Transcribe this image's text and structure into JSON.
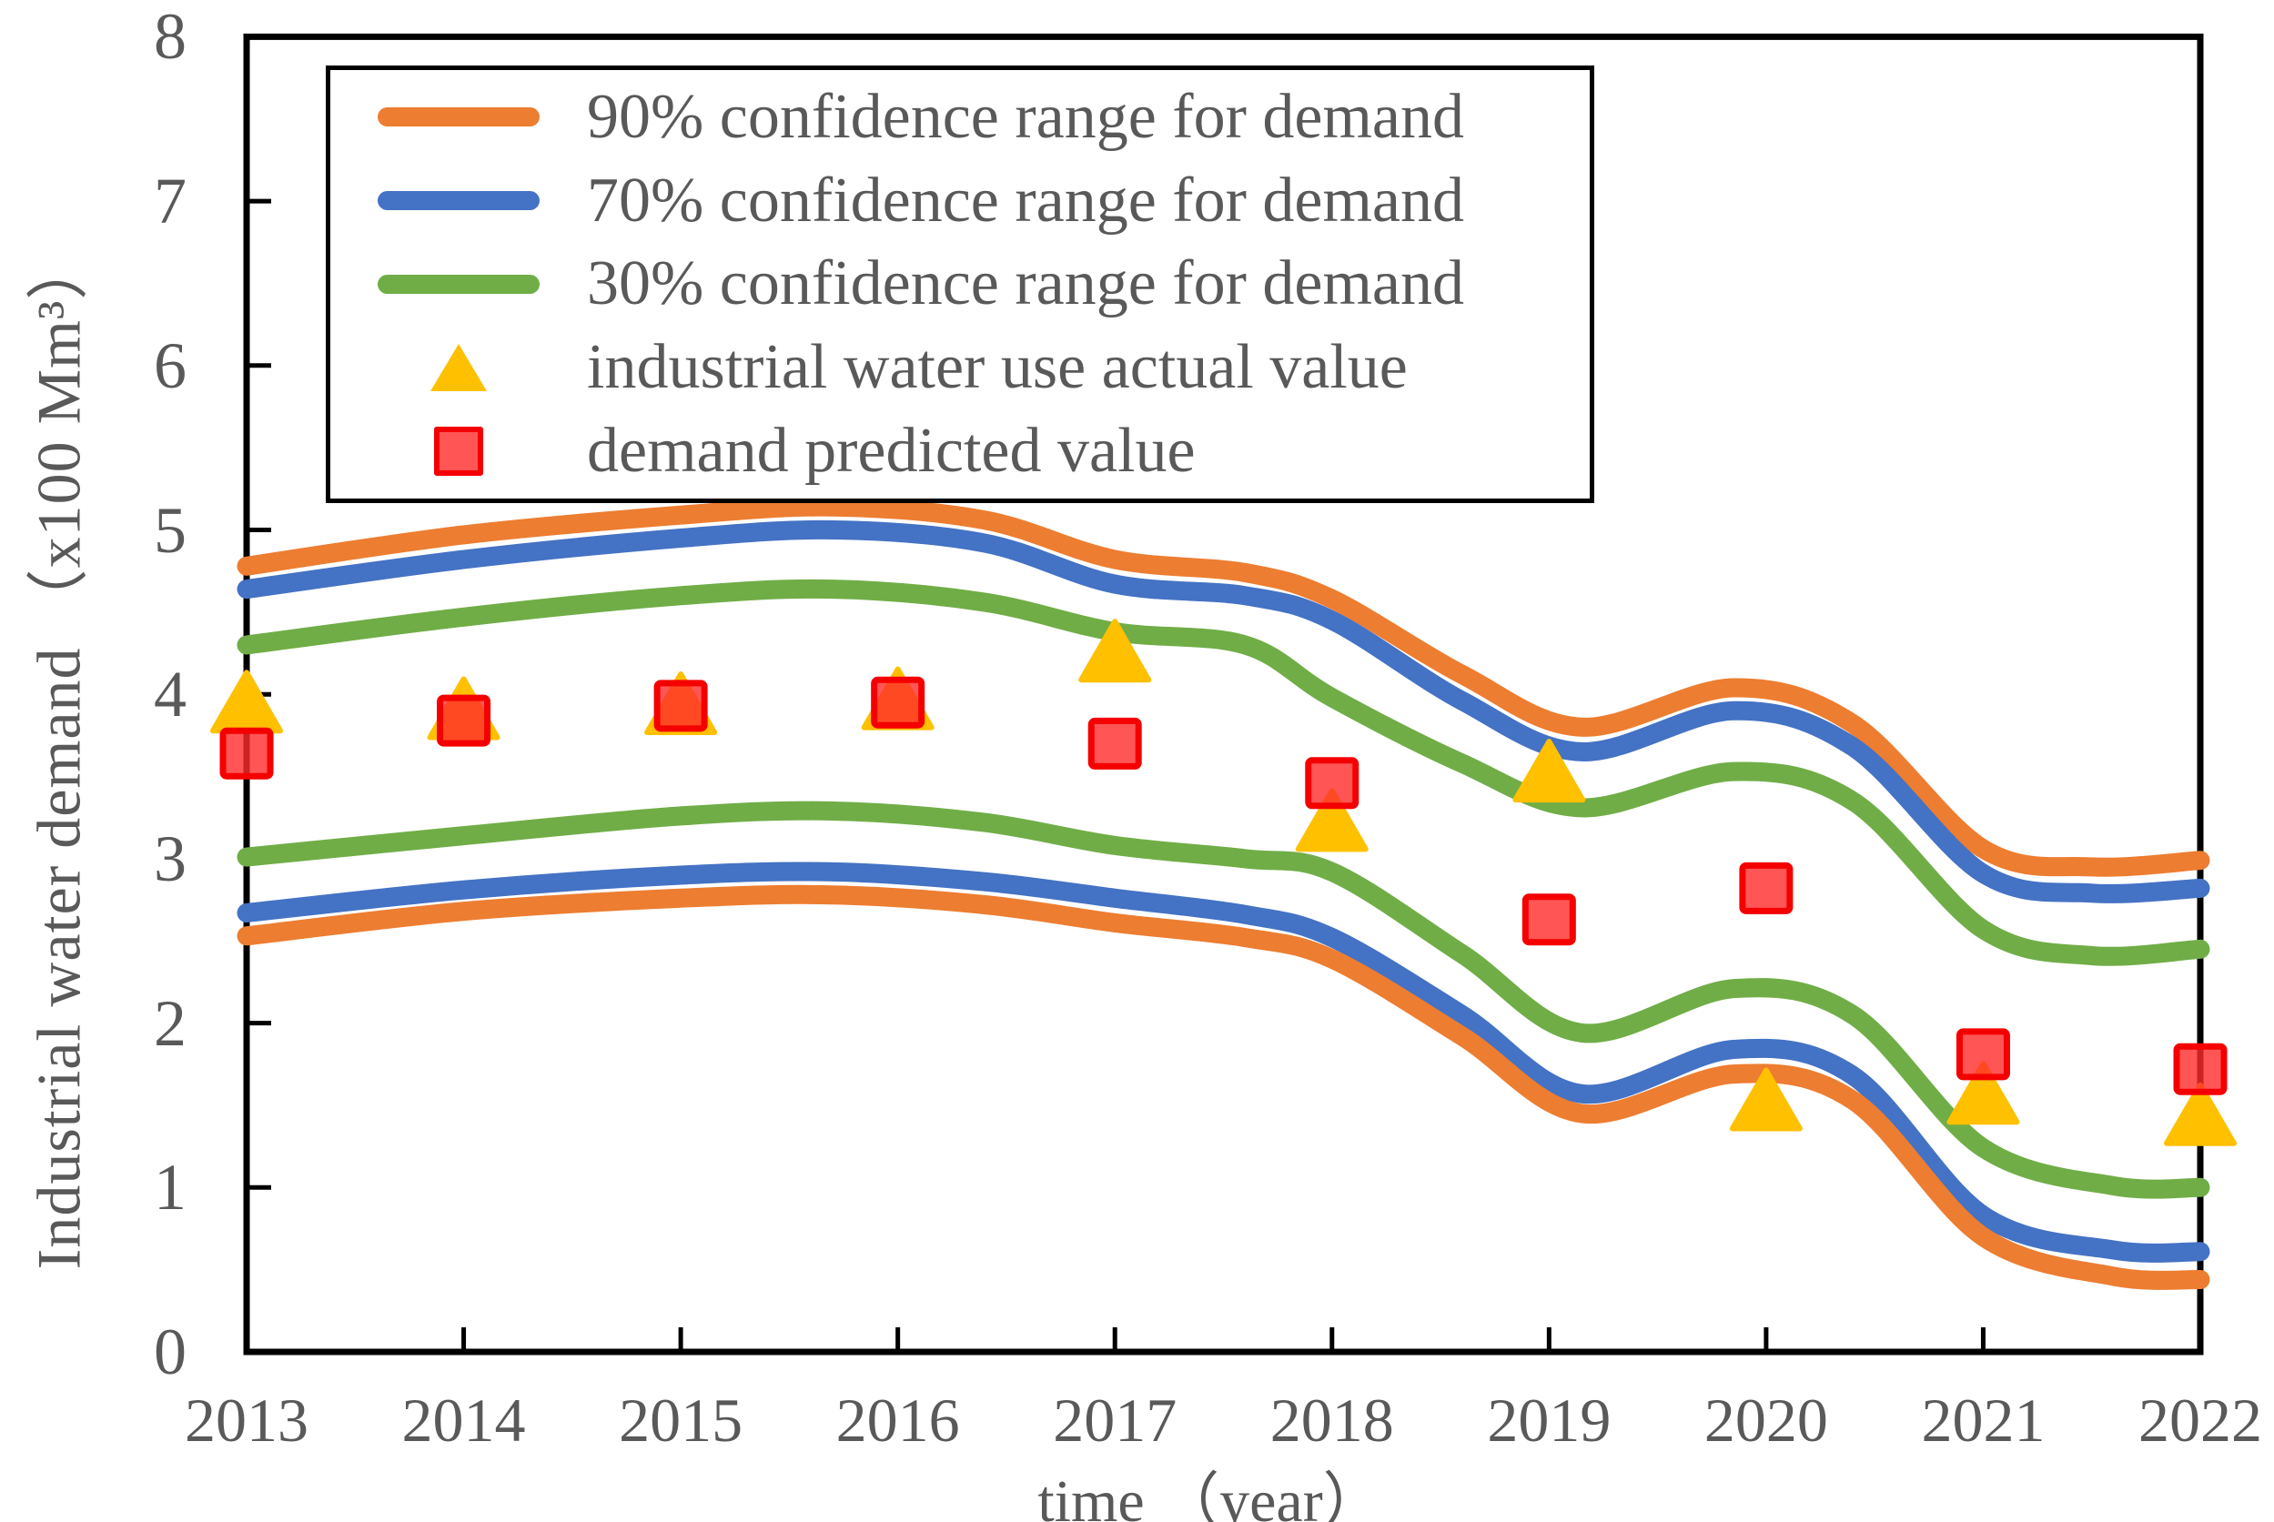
{
  "colors": {
    "band_90": "#ED7D31",
    "band_70": "#4472C4",
    "band_30": "#70AD47",
    "actual_triangle": "#FFC000",
    "predicted_square_fill": "#FF2B2B",
    "predicted_square_stroke": "#F40000",
    "axis": "#000000",
    "text": "#595959",
    "background": "#FFFFFF"
  },
  "legend": {
    "position": "top-left",
    "items": [
      {
        "label": "90% confidence range for demand",
        "swatch": "line",
        "color": "#ED7D31"
      },
      {
        "label": "70% confidence range for demand",
        "swatch": "line",
        "color": "#4472C4"
      },
      {
        "label": "30% confidence range for demand",
        "swatch": "line",
        "color": "#70AD47"
      },
      {
        "label": "industrial water use actual value",
        "swatch": "triangle",
        "color": "#FFC000"
      },
      {
        "label": "demand predicted value",
        "swatch": "square",
        "color": "#FF2B2B"
      }
    ]
  },
  "axes": {
    "x_label": "time （year）",
    "y_label": "Industrial water demand （x100 Mm³）",
    "x_ticks": [
      "2013",
      "2014",
      "2015",
      "2016",
      "2017",
      "2018",
      "2019",
      "2020",
      "2021",
      "2022"
    ],
    "y_ticks": [
      "0",
      "1",
      "2",
      "3",
      "4",
      "5",
      "6",
      "7",
      "8"
    ]
  },
  "chart_data": {
    "type": "line",
    "title": "",
    "xlabel": "time （year）",
    "ylabel": "Industrial water demand （x100 Mm³）",
    "x": [
      2013,
      2014,
      2015,
      2016,
      2017,
      2018,
      2019,
      2020,
      2021,
      2022
    ],
    "ylim": [
      0,
      8
    ],
    "grid": false,
    "legend_position": "top-left",
    "series": [
      {
        "name": "90% confidence range for demand",
        "role": "confidence-band",
        "color": "#ED7D31",
        "upper": [
          4.78,
          4.97,
          5.09,
          5.1,
          4.82,
          4.58,
          3.86,
          4.01,
          3.06,
          2.99
        ],
        "lower": [
          2.53,
          2.68,
          2.76,
          2.75,
          2.61,
          2.39,
          1.52,
          1.64,
          0.7,
          0.44
        ]
      },
      {
        "name": "70% confidence range for demand",
        "role": "confidence-band",
        "color": "#4472C4",
        "upper": [
          4.64,
          4.82,
          4.95,
          4.96,
          4.67,
          4.45,
          3.7,
          3.88,
          2.91,
          2.82
        ],
        "lower": [
          2.67,
          2.81,
          2.9,
          2.89,
          2.76,
          2.52,
          1.64,
          1.81,
          0.83,
          0.61
        ]
      },
      {
        "name": "30% confidence range for demand",
        "role": "confidence-band",
        "color": "#70AD47",
        "upper": [
          4.3,
          4.47,
          4.6,
          4.6,
          4.38,
          3.98,
          3.37,
          3.52,
          2.57,
          2.45
        ],
        "lower": [
          3.01,
          3.14,
          3.26,
          3.25,
          3.08,
          2.92,
          2.0,
          2.17,
          1.24,
          1.0
        ]
      },
      {
        "name": "industrial water use actual value",
        "role": "markers",
        "marker": "triangle",
        "color": "#FFC000",
        "values": [
          3.95,
          3.91,
          3.94,
          3.97,
          4.26,
          3.23,
          3.53,
          1.53,
          1.57,
          1.44
        ]
      },
      {
        "name": "demand predicted value",
        "role": "markers",
        "marker": "square",
        "color": "#FF2B2B",
        "values": [
          3.64,
          3.84,
          3.93,
          3.95,
          3.7,
          3.46,
          2.63,
          2.82,
          1.81,
          1.72
        ]
      }
    ],
    "shape_control_points": {
      "band_90_upper": [
        [
          2013,
          4.78
        ],
        [
          2014,
          4.97
        ],
        [
          2015,
          5.09
        ],
        [
          2015.7,
          5.14
        ],
        [
          2016.4,
          5.06
        ],
        [
          2017,
          4.82
        ],
        [
          2017.6,
          4.74
        ],
        [
          2018,
          4.58
        ],
        [
          2018.6,
          4.12
        ],
        [
          2019.15,
          3.8
        ],
        [
          2019.85,
          4.04
        ],
        [
          2020.4,
          3.82
        ],
        [
          2021,
          3.06
        ],
        [
          2021.5,
          2.95
        ],
        [
          2022,
          2.99
        ]
      ],
      "band_70_upper": [
        [
          2013,
          4.64
        ],
        [
          2014,
          4.82
        ],
        [
          2015,
          4.95
        ],
        [
          2015.7,
          5.0
        ],
        [
          2016.4,
          4.92
        ],
        [
          2017,
          4.67
        ],
        [
          2017.6,
          4.6
        ],
        [
          2018,
          4.45
        ],
        [
          2018.6,
          3.96
        ],
        [
          2019.15,
          3.65
        ],
        [
          2019.85,
          3.9
        ],
        [
          2020.4,
          3.68
        ],
        [
          2021,
          2.91
        ],
        [
          2021.5,
          2.79
        ],
        [
          2022,
          2.82
        ]
      ],
      "band_30_upper": [
        [
          2013,
          4.3
        ],
        [
          2014,
          4.47
        ],
        [
          2015,
          4.6
        ],
        [
          2015.7,
          4.64
        ],
        [
          2016.4,
          4.56
        ],
        [
          2017,
          4.38
        ],
        [
          2017.6,
          4.3
        ],
        [
          2018,
          3.98
        ],
        [
          2018.6,
          3.58
        ],
        [
          2019.15,
          3.31
        ],
        [
          2019.85,
          3.53
        ],
        [
          2020.4,
          3.35
        ],
        [
          2021,
          2.57
        ],
        [
          2021.5,
          2.41
        ],
        [
          2022,
          2.45
        ]
      ],
      "band_30_lower": [
        [
          2013,
          3.01
        ],
        [
          2014,
          3.14
        ],
        [
          2015,
          3.26
        ],
        [
          2015.7,
          3.29
        ],
        [
          2016.4,
          3.22
        ],
        [
          2017,
          3.08
        ],
        [
          2017.6,
          3.0
        ],
        [
          2018,
          2.92
        ],
        [
          2018.6,
          2.42
        ],
        [
          2019.15,
          1.94
        ],
        [
          2019.85,
          2.21
        ],
        [
          2020.4,
          2.05
        ],
        [
          2021,
          1.24
        ],
        [
          2021.6,
          1.01
        ],
        [
          2022,
          1.0
        ]
      ],
      "band_70_lower": [
        [
          2013,
          2.67
        ],
        [
          2014,
          2.81
        ],
        [
          2015,
          2.9
        ],
        [
          2015.7,
          2.92
        ],
        [
          2016.4,
          2.86
        ],
        [
          2017,
          2.76
        ],
        [
          2017.6,
          2.66
        ],
        [
          2018,
          2.52
        ],
        [
          2018.6,
          2.05
        ],
        [
          2019.15,
          1.57
        ],
        [
          2019.85,
          1.84
        ],
        [
          2020.4,
          1.68
        ],
        [
          2021,
          0.83
        ],
        [
          2021.6,
          0.62
        ],
        [
          2022,
          0.61
        ]
      ],
      "band_90_lower": [
        [
          2013,
          2.53
        ],
        [
          2014,
          2.68
        ],
        [
          2015,
          2.76
        ],
        [
          2015.7,
          2.78
        ],
        [
          2016.4,
          2.72
        ],
        [
          2017,
          2.61
        ],
        [
          2017.6,
          2.52
        ],
        [
          2018,
          2.39
        ],
        [
          2018.6,
          1.92
        ],
        [
          2019.15,
          1.45
        ],
        [
          2019.85,
          1.69
        ],
        [
          2020.4,
          1.53
        ],
        [
          2021,
          0.7
        ],
        [
          2021.6,
          0.46
        ],
        [
          2022,
          0.44
        ]
      ]
    }
  }
}
